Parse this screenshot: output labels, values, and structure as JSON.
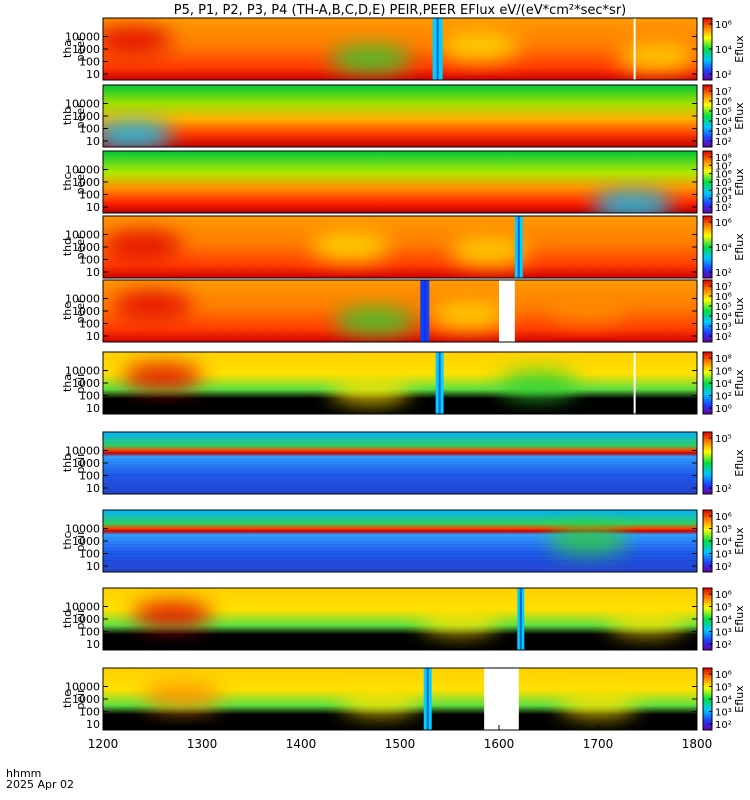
{
  "title": "P5, P1, P2, P3, P4 (TH-A,B,C,D,E) PEIR,PEER EFlux eV/(eV*cm²*sec*sr)",
  "chart_data": {
    "type": "heatmap",
    "x_axis": {
      "ticks": [
        "1200",
        "1300",
        "1400",
        "1500",
        "1600",
        "1700",
        "1800"
      ],
      "range": [
        1200,
        1800
      ],
      "label_line1": "hhmm",
      "label_line2": "2025 Apr 02"
    },
    "y_ticks": [
      "10000",
      "1000",
      "100",
      "10"
    ],
    "colorbar_label": "Eflux",
    "panels": [
      {
        "label_top": "tha",
        "label_bottom": "peer",
        "species": "electron",
        "cbar_ticks": [
          "10⁶",
          "10⁴",
          "10²"
        ],
        "gaps": [
          [
            1736,
            1738
          ]
        ],
        "blobs": [
          [
            1230,
            5000,
            "red"
          ],
          [
            1470,
            150,
            "green"
          ],
          [
            1580,
            1500,
            "yellow"
          ],
          [
            1760,
            200,
            "yellow"
          ]
        ],
        "spikes": [
          [
            1538,
            10,
            0.5,
            "cyan"
          ]
        ]
      },
      {
        "label_top": "thb",
        "label_bottom": "peer",
        "species": "electron_b",
        "cbar_ticks": [
          "10⁷",
          "10⁶",
          "10⁵",
          "10⁴",
          "10³",
          "10²"
        ],
        "gaps": [],
        "blobs": [
          [
            1230,
            30,
            "cyan"
          ]
        ],
        "spikes": []
      },
      {
        "label_top": "thc",
        "label_bottom": "peer",
        "species": "electron_c",
        "cbar_ticks": [
          "10⁸",
          "10⁷",
          "10⁶",
          "10⁵",
          "10⁴",
          "10³",
          "10²"
        ],
        "gaps": [],
        "blobs": [
          [
            1735,
            15,
            "cyan"
          ]
        ],
        "spikes": []
      },
      {
        "label_top": "thd",
        "label_bottom": "peer",
        "species": "electron",
        "cbar_ticks": [
          "10⁶",
          "10⁴",
          "10²"
        ],
        "gaps": [],
        "blobs": [
          [
            1240,
            1500,
            "red"
          ],
          [
            1450,
            1000,
            "yellow"
          ],
          [
            1590,
            400,
            "yellow"
          ]
        ],
        "spikes": [
          [
            1620,
            8,
            0.5,
            "cyan"
          ]
        ]
      },
      {
        "label_top": "the",
        "label_bottom": "peer",
        "species": "electron",
        "cbar_ticks": [
          "10⁷",
          "10⁶",
          "10⁵",
          "10⁴",
          "10³",
          "10²"
        ],
        "gaps": [
          [
            1600,
            1616
          ]
        ],
        "blobs": [
          [
            1250,
            3000,
            "red"
          ],
          [
            1475,
            150,
            "green"
          ],
          [
            1570,
            400,
            "yellow"
          ],
          [
            1690,
            1500,
            "orange"
          ]
        ],
        "spikes": [
          [
            1525,
            9,
            0.5,
            "blue"
          ]
        ]
      },
      {
        "label_top": "tha",
        "label_bottom": "peir",
        "species": "ion",
        "cbar_ticks": [
          "10⁸",
          "10⁶",
          "10⁴",
          "10²",
          "10⁰"
        ],
        "gaps": [
          [
            1736,
            1737
          ]
        ],
        "blobs": [
          [
            1260,
            3000,
            "red"
          ],
          [
            1470,
            300,
            "yellow"
          ],
          [
            1640,
            800,
            "green"
          ]
        ],
        "spikes": [
          [
            1540,
            8,
            0.5,
            "cyan"
          ]
        ]
      },
      {
        "label_top": "thb",
        "label_bottom": "peir",
        "species": "ion_flat",
        "cbar_ticks": [
          "10⁵",
          "10²"
        ],
        "gaps": [],
        "blobs": [],
        "spikes": []
      },
      {
        "label_top": "thc",
        "label_bottom": "peir",
        "species": "ion_flat",
        "cbar_ticks": [
          "10⁶",
          "10⁵",
          "10⁴",
          "10³",
          "10²"
        ],
        "gaps": [],
        "blobs": [
          [
            1690,
            1200,
            "green"
          ]
        ],
        "spikes": []
      },
      {
        "label_top": "thd",
        "label_bottom": "peir",
        "species": "ion",
        "cbar_ticks": [
          "10⁶",
          "10⁵",
          "10⁴",
          "10³",
          "10²"
        ],
        "gaps": [],
        "blobs": [
          [
            1270,
            2000,
            "red"
          ],
          [
            1560,
            800,
            "yellow"
          ],
          [
            1750,
            700,
            "yellow"
          ]
        ],
        "spikes": [
          [
            1622,
            7,
            0.5,
            "cyan"
          ]
        ]
      },
      {
        "label_top": "the",
        "label_bottom": "peir",
        "species": "ion",
        "cbar_ticks": [
          "10⁶",
          "10⁵",
          "10⁴",
          "10³",
          "10²"
        ],
        "gaps": [
          [
            1585,
            1620
          ]
        ],
        "blobs": [
          [
            1280,
            1500,
            "orange"
          ],
          [
            1480,
            700,
            "yellow"
          ],
          [
            1700,
            500,
            "yellow"
          ]
        ],
        "spikes": [
          [
            1528,
            8,
            0.5,
            "cyan"
          ]
        ]
      }
    ]
  }
}
